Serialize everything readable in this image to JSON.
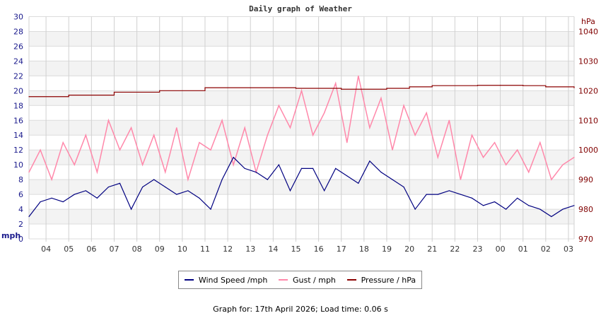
{
  "chart_data": {
    "type": "line",
    "title": "Daily graph of Weather",
    "left_axis": {
      "label": "mph",
      "range": [
        0,
        30
      ],
      "ticks": [
        "0",
        "2",
        "4",
        "6",
        "8",
        "10",
        "12",
        "14",
        "16",
        "18",
        "20",
        "22",
        "24",
        "26",
        "28",
        "30"
      ],
      "color": "#1a1a8c"
    },
    "right_axis": {
      "label": "hPa",
      "range": [
        970,
        1045
      ],
      "ticks": [
        "970",
        "980",
        "990",
        "1000",
        "1010",
        "1020",
        "1030",
        "1040"
      ],
      "color": "#800000"
    },
    "x_ticks": [
      "04",
      "05",
      "06",
      "07",
      "08",
      "09",
      "10",
      "11",
      "12",
      "13",
      "14",
      "15",
      "16",
      "17",
      "18",
      "19",
      "20",
      "21",
      "22",
      "23",
      "00",
      "01",
      "02",
      "03"
    ],
    "x_range": [
      "03:15",
      "03:15"
    ],
    "grid": true,
    "legend_position": "bottom",
    "x": [
      "03:15",
      "03:45",
      "04:15",
      "04:45",
      "05:15",
      "05:45",
      "06:15",
      "06:45",
      "07:15",
      "07:45",
      "08:15",
      "08:45",
      "09:15",
      "09:45",
      "10:15",
      "10:45",
      "11:15",
      "11:45",
      "12:15",
      "12:45",
      "13:15",
      "13:45",
      "14:15",
      "14:45",
      "15:15",
      "15:45",
      "16:15",
      "16:45",
      "17:15",
      "17:45",
      "18:15",
      "18:45",
      "19:15",
      "19:45",
      "20:15",
      "20:45",
      "21:15",
      "21:45",
      "22:15",
      "22:45",
      "23:15",
      "23:45",
      "00:15",
      "00:45",
      "01:15",
      "01:45",
      "02:15",
      "02:45",
      "03:15"
    ],
    "series": [
      {
        "name": "Wind Speed /mph",
        "color": "#000080",
        "axis": "left",
        "values": [
          3,
          5,
          5.5,
          5,
          6,
          6.5,
          5.5,
          7,
          7.5,
          4,
          7,
          8,
          7,
          6,
          6.5,
          5.5,
          4,
          8,
          11,
          9.5,
          9,
          8,
          10,
          6.5,
          9.5,
          9.5,
          6.5,
          9.5,
          8.5,
          7.5,
          10.5,
          9,
          8,
          7,
          4,
          6,
          6,
          6.5,
          6,
          5.5,
          4.5,
          5,
          4,
          5.5,
          4.5,
          4,
          3,
          4,
          4.5
        ]
      },
      {
        "name": "Gust / mph",
        "color": "#ff88aa",
        "axis": "left",
        "values": [
          9,
          12,
          8,
          13,
          10,
          14,
          9,
          16,
          12,
          15,
          10,
          14,
          9,
          15,
          8,
          13,
          12,
          16,
          10,
          15,
          9,
          14,
          18,
          15,
          20,
          14,
          17,
          21,
          13,
          22,
          15,
          19,
          12,
          18,
          14,
          17,
          11,
          16,
          8,
          14,
          11,
          13,
          10,
          12,
          9,
          13,
          8,
          10,
          11
        ]
      },
      {
        "name": "Pressure / hPa",
        "color": "#8b0000",
        "axis": "right",
        "x": [
          "03:15",
          "05:00",
          "07:00",
          "09:00",
          "11:00",
          "13:00",
          "15:00",
          "17:00",
          "19:00",
          "20:00",
          "21:00",
          "23:00",
          "00:00",
          "01:00",
          "02:00",
          "03:15"
        ],
        "values": [
          1018,
          1018.5,
          1019.5,
          1020,
          1021,
          1021,
          1020.8,
          1020.5,
          1020.8,
          1021.3,
          1021.7,
          1021.8,
          1021.8,
          1021.7,
          1021.3,
          1021
        ]
      }
    ]
  },
  "footer": "Graph for: 17th April 2026; Load time: 0.06 s"
}
